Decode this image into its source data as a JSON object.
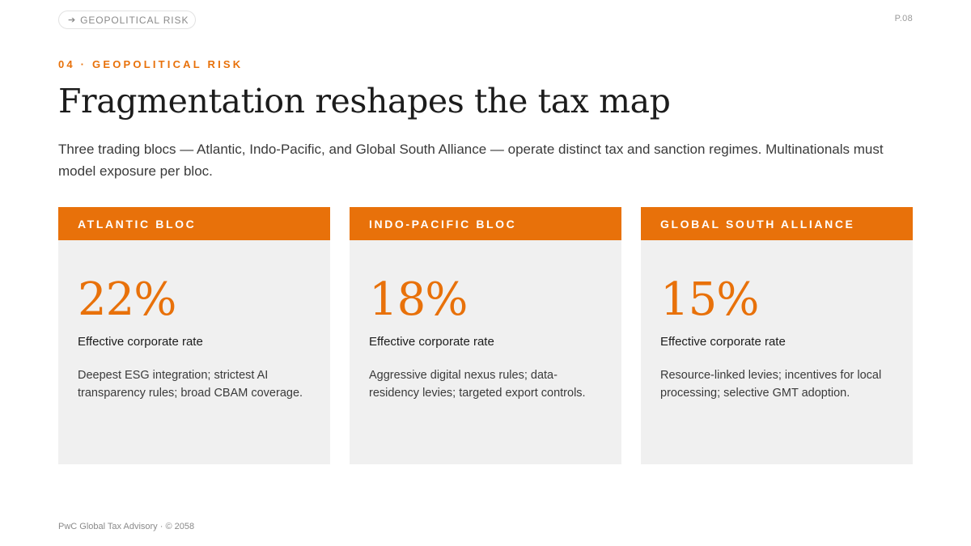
{
  "header": {
    "section_pill": "GEOPOLITICAL RISK",
    "page_number": "P.08"
  },
  "eyebrow": "04 · GEOPOLITICAL RISK",
  "title": "Fragmentation reshapes the tax map",
  "subtitle": "Three trading blocs — Atlantic, Indo-Pacific, and Global South Alliance — operate distinct tax and sanction regimes. Multinationals must model exposure per bloc.",
  "cards": [
    {
      "header": "ATLANTIC BLOC",
      "rate": "22%",
      "label": "Effective corporate rate",
      "description": "Deepest ESG integration; strictest AI transparency rules; broad CBAM coverage."
    },
    {
      "header": "INDO-PACIFIC BLOC",
      "rate": "18%",
      "label": "Effective corporate rate",
      "description": "Aggressive digital nexus rules; data-residency levies; targeted export controls."
    },
    {
      "header": "GLOBAL SOUTH ALLIANCE",
      "rate": "15%",
      "label": "Effective corporate rate",
      "description": "Resource-linked levies; incentives for local processing; selective GMT adoption."
    }
  ],
  "footer": "PwC Global Tax Advisory · © 2058",
  "colors": {
    "accent": "#e8710a",
    "card_background": "#f0f0f0",
    "text": "#1c1c1c"
  }
}
